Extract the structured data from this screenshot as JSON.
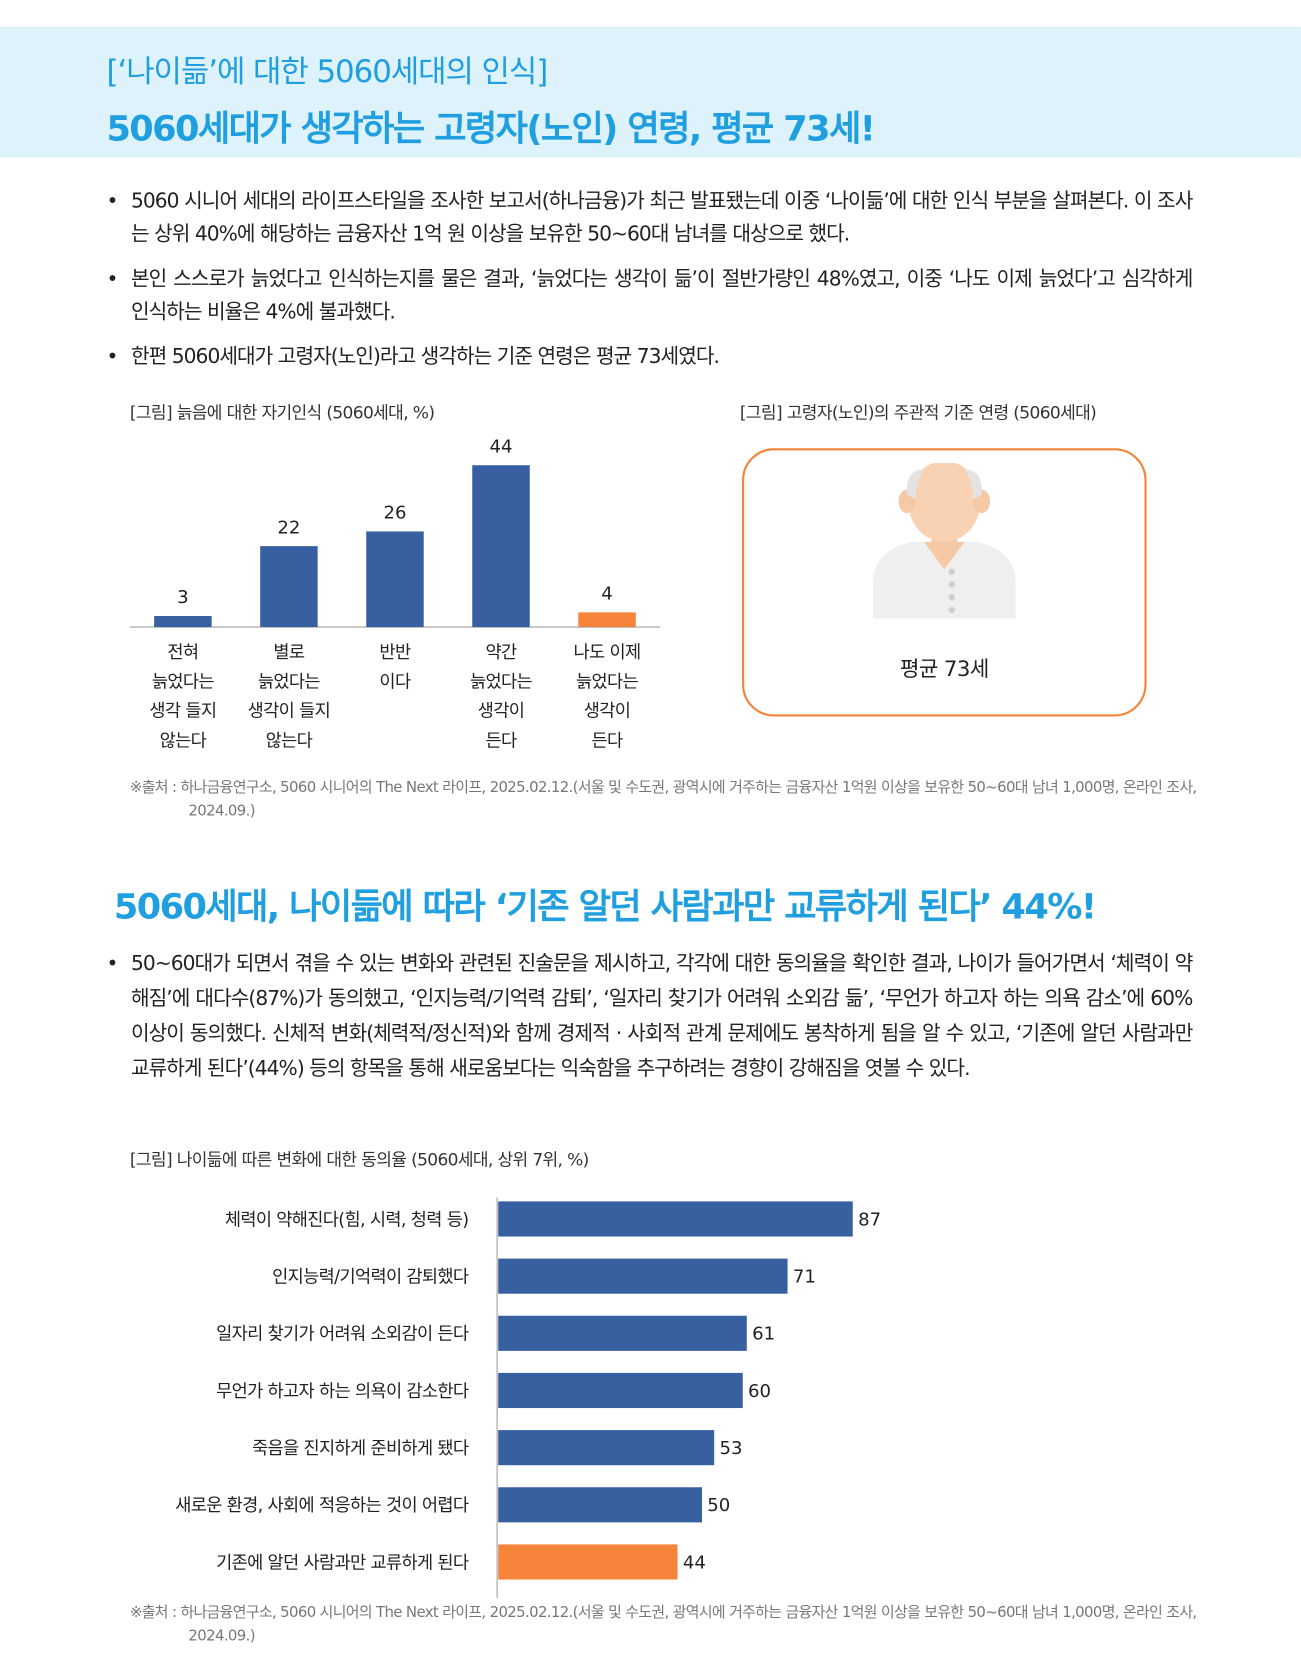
{
  "header": {
    "line1": "[‘나이듦’에 대한 5060세대의 인식]",
    "line2": "5060세대가 생각하는 고령자(노인) 연령, 평균 73세!"
  },
  "section1": {
    "bullets": [
      "5060 시니어 세대의 라이프스타일을 조사한 보고서(하나금융)가 최근 발표됐는데 이중 ‘나이듦’에 대한 인식 부분을 살펴본다. 이 조사는 상위 40%에 해당하는 금융자산 1억 원 이상을 보유한 50~60대 남녀를 대상으로 했다.",
      "본인 스스로가 늙었다고 인식하는지를 물은 결과, ‘늙었다는 생각이 듦’이 절반가량인 48%였고, 이중 ‘나도 이제 늙었다’고 심각하게 인식하는 비율은 4%에 불과했다.",
      "한편 5060세대가 고령자(노인)라고 생각하는 기준 연령은 평균 73세였다."
    ],
    "figure_title": "[그림] 고령자(노인)의 주관적 기준 연령 (5060세대)",
    "figure_label": "평균 73세",
    "source": "※출처 : 하나금융연구소, 5060 시니어의 The Next 라이프, 2025.02.12.(서울 및 수도권, 광역시에 거주하는 금융자산 1억원 이상을 보유한 50~60대 남녀 1,000명, 온라인 조사, 2024.09.)"
  },
  "section2": {
    "title": "5060세대, 나이듦에 따라 ‘기존 알던 사람과만 교류하게 된다’ 44%!",
    "bullets": [
      "50~60대가 되면서 겪을 수 있는 변화와 관련된 진술문을 제시하고, 각각에 대한 동의율을 확인한 결과, 나이가 들어가면서 ‘체력이 약해짐’에 대다수(87%)가 동의했고, ‘인지능력/기억력 감퇴’, ‘일자리 찾기가 어려워 소외감 듦’, ‘무언가 하고자 하는 의욕 감소’에 60% 이상이 동의했다. 신체적 변화(체력적/정신적)와 함께 경제적 · 사회적 관계 문제에도 봉착하게 됨을 알 수 있고, ‘기존에 알던 사람과만 교류하게 된다’(44%) 등의 항목을 통해 새로움보다는 익숙함을 추구하려는 경향이 강해짐을 엿볼 수 있다."
    ],
    "source": "※출처 : 하나금융연구소, 5060 시니어의 The Next 라이프, 2025.02.12.(서울 및 수도권, 광역시에 거주하는 금융자산 1억원 이상을 보유한 50~60대 남녀 1,000명, 온라인 조사, 2024.09.)"
  },
  "chart_data": [
    {
      "type": "bar",
      "title": "[그림] 늙음에 대한 자기인식 (5060세대, %)",
      "categories": [
        "전혀\n늙었다는\n생각 들지\n않는다",
        "별로\n늙었다는\n생각이 들지\n않는다",
        "반반\n이다",
        "약간\n늙었다는\n생각이\n든다",
        "나도 이제\n늙었다는\n생각이\n든다"
      ],
      "values": [
        3,
        22,
        26,
        44,
        4
      ],
      "colors": [
        "#36609f",
        "#36609f",
        "#36609f",
        "#36609f",
        "#f5843a"
      ]
    },
    {
      "type": "barh",
      "title": "[그림] 나이듦에 따른 변화에 대한 동의율 (5060세대, 상위 7위, %)",
      "categories": [
        "체력이 약해진다(힘, 시력, 청력 등)",
        "인지능력/기억력이 감퇴했다",
        "일자리 찾기가 어려워 소외감이 든다",
        "무언가 하고자 하는 의욕이 감소한다",
        "죽음을 진지하게 준비하게 됐다",
        "새로운 환경, 사회에 적응하는 것이 어렵다",
        "기존에 알던 사람과만 교류하게 된다"
      ],
      "values": [
        87,
        71,
        61,
        60,
        53,
        50,
        44
      ],
      "colors": [
        "#36609f",
        "#36609f",
        "#36609f",
        "#36609f",
        "#36609f",
        "#36609f",
        "#f5843a"
      ]
    }
  ]
}
